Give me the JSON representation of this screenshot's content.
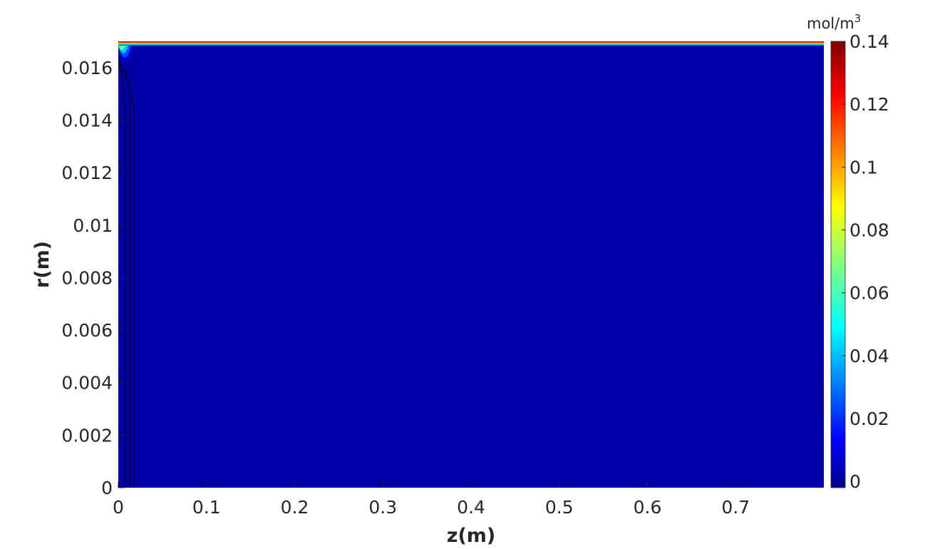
{
  "chart_data": {
    "type": "heatmap",
    "title": "",
    "xlabel": "z(m)",
    "ylabel": "r(m)",
    "xlim": [
      0,
      0.8
    ],
    "ylim": [
      0,
      0.017
    ],
    "x_ticks": [
      "0",
      "0.1",
      "0.2",
      "0.3",
      "0.4",
      "0.5",
      "0.6",
      "0.7"
    ],
    "x_tick_values": [
      0,
      0.1,
      0.2,
      0.3,
      0.4,
      0.5,
      0.6,
      0.7
    ],
    "y_ticks": [
      "0",
      "0.002",
      "0.004",
      "0.006",
      "0.008",
      "0.01",
      "0.012",
      "0.014",
      "0.016"
    ],
    "y_tick_values": [
      0,
      0.002,
      0.004,
      0.006,
      0.008,
      0.01,
      0.012,
      0.014,
      0.016
    ],
    "colorbar": {
      "units_base": "mol/m",
      "units_exp": "3",
      "range": [
        -0.002,
        0.14
      ],
      "ticks": [
        "0",
        "0.02",
        "0.04",
        "0.06",
        "0.08",
        "0.1",
        "0.12",
        "0.14"
      ],
      "tick_values": [
        0,
        0.02,
        0.04,
        0.06,
        0.08,
        0.1,
        0.12,
        0.14
      ],
      "colormap": "jet"
    },
    "field": {
      "background_value": 0,
      "background_color": "#0000a6",
      "boundary_layer": {
        "r_from": 0.0168,
        "r_to": 0.017,
        "value_at_wall": 0.14,
        "contour_colors": [
          "#0000c8",
          "#0050ff",
          "#00c8ff",
          "#60ff90",
          "#ffd000",
          "#ff5000",
          "#c00000"
        ]
      },
      "entrance_contours_z": [
        0.008,
        0.014,
        0.018
      ]
    },
    "grid": false
  }
}
